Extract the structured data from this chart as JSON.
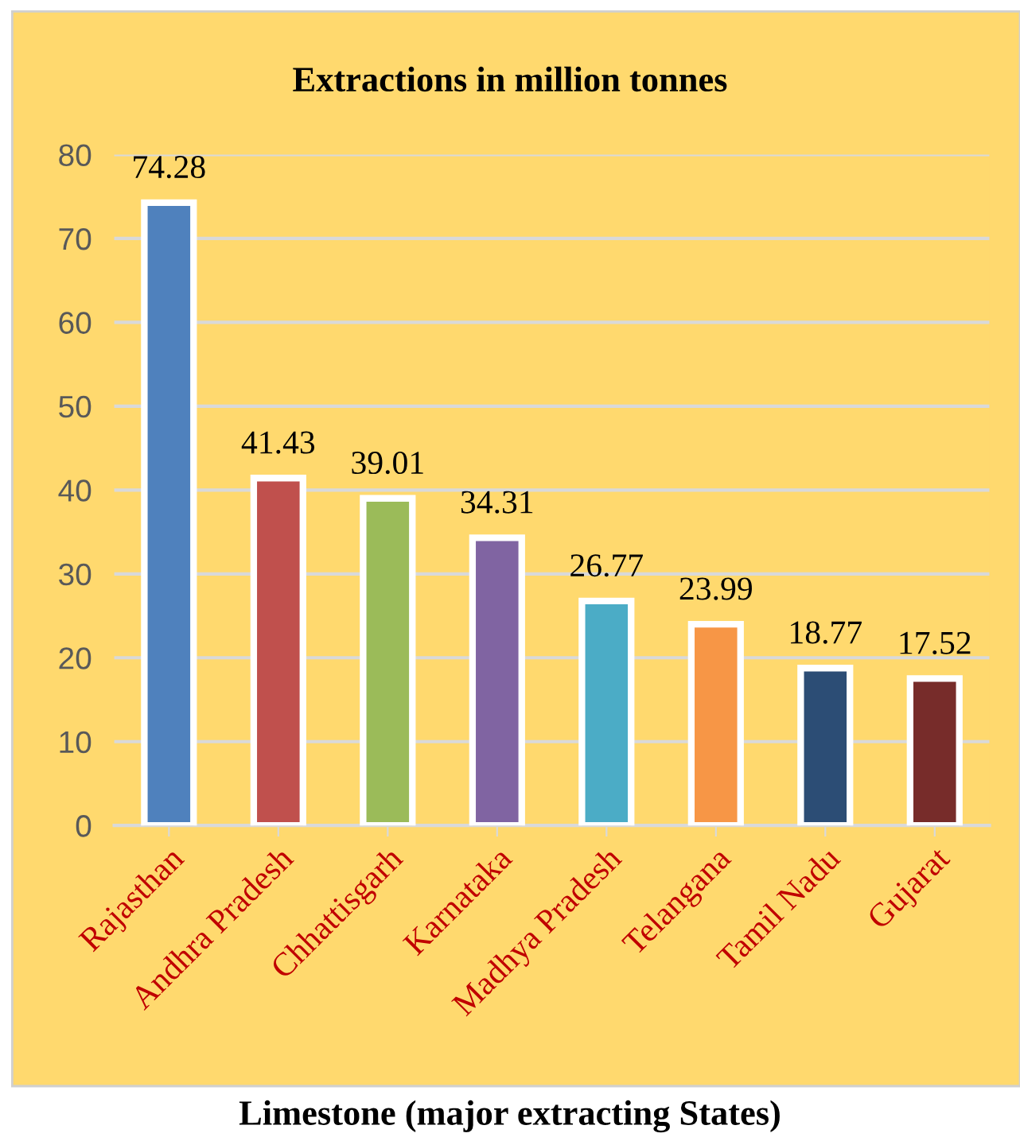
{
  "chart_data": {
    "type": "bar",
    "title": "Extractions in million tonnes",
    "categories": [
      "Rajasthan",
      "Andhra Pradesh",
      "Chhattisgarh",
      "Karnataka",
      "Madhya Pradesh",
      "Telangana",
      "Tamil Nadu",
      "Gujarat"
    ],
    "values": [
      74.28,
      41.43,
      39.01,
      34.31,
      26.77,
      23.99,
      18.77,
      17.52
    ],
    "colors": [
      "#4f81bd",
      "#c0504d",
      "#9bbb59",
      "#8064a2",
      "#4bacc6",
      "#f79646",
      "#2c4d75",
      "#772c2a"
    ],
    "ylim": [
      0,
      80
    ],
    "yticks": [
      0,
      10,
      20,
      30,
      40,
      50,
      60,
      70,
      80
    ],
    "grid": "y",
    "data_labels": true,
    "annotations": [
      "Limestone (major extracting States)"
    ]
  }
}
